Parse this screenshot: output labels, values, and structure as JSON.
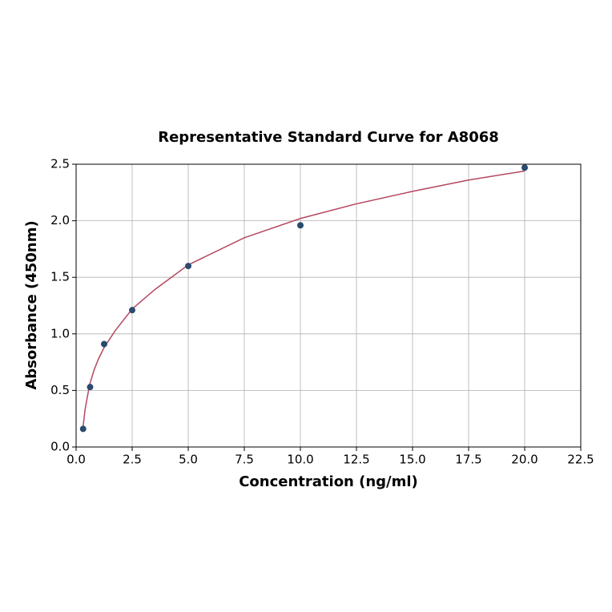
{
  "chart_data": {
    "type": "scatter",
    "title": "Representative Standard Curve for A8068",
    "x_label": "Concentration (ng/ml)",
    "y_label": "Absorbance (450nm)",
    "xlim": [
      0,
      22.5
    ],
    "ylim": [
      0,
      2.5
    ],
    "xticks": [
      {
        "value": 0,
        "label": "0.0"
      },
      2.5,
      {
        "value": 5,
        "label": "5.0"
      },
      7.5,
      {
        "value": 10,
        "label": "10.0"
      },
      12.5,
      {
        "value": 15,
        "label": "15.0"
      },
      17.5,
      {
        "value": 20,
        "label": "20.0"
      },
      22.5
    ],
    "yticks": [
      {
        "value": 0,
        "label": "0.0"
      },
      0.5,
      {
        "value": 1,
        "label": "1.0"
      },
      1.5,
      {
        "value": 2,
        "label": "2.0"
      },
      2.5
    ],
    "grid": true,
    "series": [
      {
        "type": "line",
        "color": "#b5485f",
        "x": [
          0.3,
          0.4,
          0.6,
          0.8,
          1.0,
          1.25,
          1.75,
          2.5,
          3.5,
          5,
          7.5,
          10,
          12.5,
          15,
          17.5,
          20
        ],
        "values": [
          0.16,
          0.33,
          0.55,
          0.68,
          0.78,
          0.88,
          1.03,
          1.22,
          1.39,
          1.61,
          1.85,
          2.02,
          2.15,
          2.26,
          2.36,
          2.44
        ]
      },
      {
        "type": "scatter",
        "color": "#2b4a6f",
        "x": [
          0.3125,
          0.625,
          1.25,
          2.5,
          5,
          10,
          20
        ],
        "values": [
          0.16,
          0.53,
          0.91,
          1.21,
          1.6,
          1.96,
          2.47
        ]
      }
    ]
  }
}
